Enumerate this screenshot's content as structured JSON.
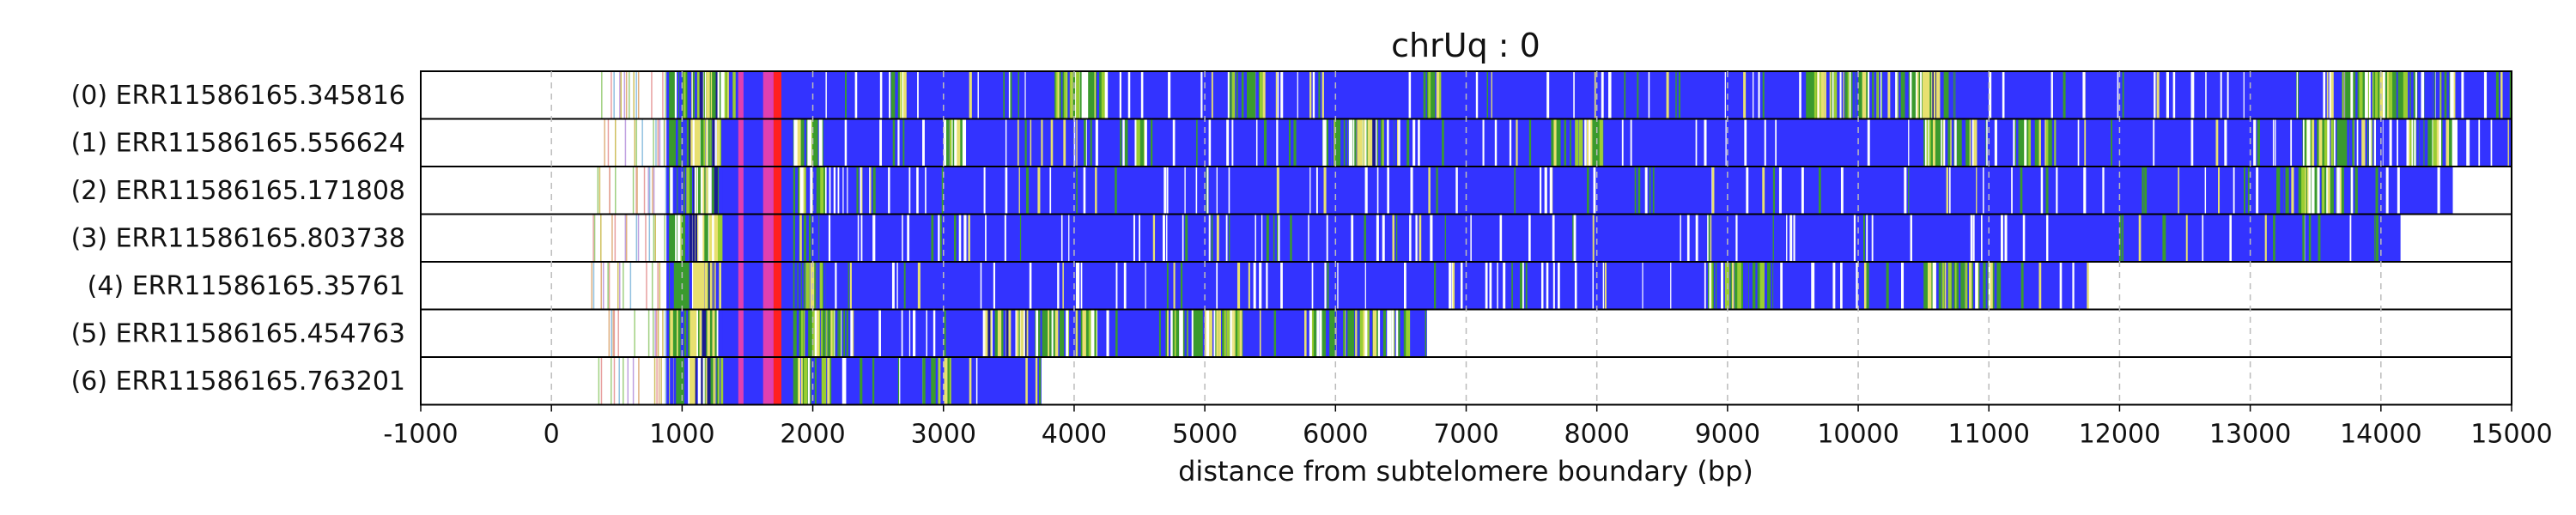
{
  "chart_data": {
    "type": "track-plot",
    "title": "chrUq : 0",
    "xlabel": "distance from subtelomere boundary (bp)",
    "xlim": [
      -1000,
      15000
    ],
    "xticks": [
      -1000,
      0,
      1000,
      2000,
      3000,
      4000,
      5000,
      6000,
      7000,
      8000,
      9000,
      10000,
      11000,
      12000,
      13000,
      14000,
      15000
    ],
    "xtick_labels": [
      "-1000",
      "0",
      "1000",
      "2000",
      "3000",
      "4000",
      "5000",
      "6000",
      "7000",
      "8000",
      "9000",
      "10000",
      "11000",
      "12000",
      "13000",
      "14000",
      "15000"
    ],
    "grid": "vertical dashed",
    "colors": {
      "dominant": "#3333ff",
      "variant_green": "#3a9a2e",
      "variant_yellow": "#e8e070",
      "variant_magenta": "#e040b0",
      "variant_red": "#ff2020",
      "variant_white": "#ffffff",
      "variant_lightgreen": "#9acd32"
    },
    "reads": [
      {
        "label": "(0) ERR11586165.345816",
        "start": 0,
        "end": 15000,
        "green_zones": [
          [
            900,
            1450
          ],
          [
            2600,
            2700
          ],
          [
            3850,
            4250
          ],
          [
            5200,
            5450
          ],
          [
            6700,
            6800
          ],
          [
            9600,
            10200
          ],
          [
            10300,
            10750
          ],
          [
            13700,
            14550
          ]
        ],
        "yellow_zones": [
          [
            1100,
            1300
          ],
          [
            10400,
            10600
          ]
        ]
      },
      {
        "label": "(1) ERR11586165.556624",
        "start": 0,
        "end": 15000,
        "green_zones": [
          [
            900,
            1300
          ],
          [
            1850,
            2100
          ],
          [
            3000,
            3150
          ],
          [
            4350,
            4600
          ],
          [
            5900,
            6450
          ],
          [
            7650,
            8050
          ],
          [
            10500,
            10900
          ],
          [
            11200,
            11500
          ],
          [
            13400,
            14000
          ],
          [
            14200,
            14600
          ]
        ],
        "yellow_zones": [
          [
            1050,
            1250
          ],
          [
            6100,
            6300
          ]
        ]
      },
      {
        "label": "(2) ERR11586165.171808",
        "start": 0,
        "end": 14550,
        "green_zones": [
          [
            900,
            1300
          ],
          [
            1850,
            2100
          ],
          [
            13200,
            13700
          ]
        ],
        "yellow_zones": [
          [
            1050,
            1250
          ]
        ]
      },
      {
        "label": "(3) ERR11586165.803738",
        "start": 0,
        "end": 14150,
        "green_zones": [
          [
            900,
            1300
          ],
          [
            1850,
            2050
          ]
        ],
        "yellow_zones": [
          [
            1050,
            1250
          ]
        ]
      },
      {
        "label": "(4) ERR11586165.35761",
        "start": 0,
        "end": 11750,
        "green_zones": [
          [
            900,
            1300
          ],
          [
            1850,
            2100
          ],
          [
            8850,
            9350
          ],
          [
            10500,
            11100
          ]
        ],
        "yellow_zones": [
          [
            1050,
            1250
          ]
        ]
      },
      {
        "label": "(5) ERR11586165.454763",
        "start": 0,
        "end": 6700,
        "green_zones": [
          [
            900,
            1300
          ],
          [
            1850,
            2300
          ],
          [
            3700,
            4200
          ],
          [
            4700,
            5300
          ],
          [
            5800,
            6550
          ]
        ],
        "yellow_zones": [
          [
            1050,
            1250
          ],
          [
            3300,
            3650
          ]
        ]
      },
      {
        "label": "(6) ERR11586165.763201",
        "start": 0,
        "end": 3750,
        "green_zones": [
          [
            900,
            1300
          ],
          [
            1850,
            2100
          ],
          [
            2850,
            3050
          ]
        ],
        "yellow_zones": [
          [
            1050,
            1250
          ]
        ]
      }
    ]
  }
}
